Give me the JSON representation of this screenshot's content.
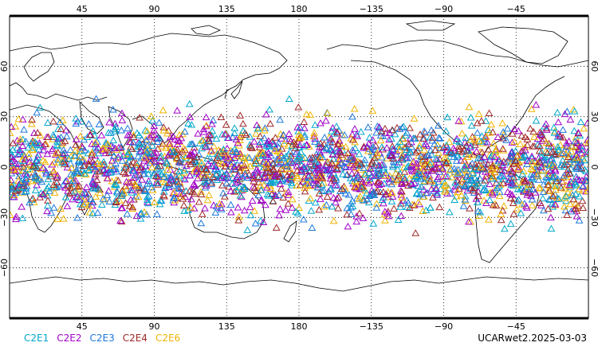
{
  "map": {
    "projection": "cylindrical-equidistant",
    "lon_range": [
      0,
      360
    ],
    "lat_range": [
      -90,
      90
    ],
    "grid": "dotted",
    "lon_ticks": [
      {
        "lon": 45,
        "label": "45"
      },
      {
        "lon": 90,
        "label": "90"
      },
      {
        "lon": 135,
        "label": "135"
      },
      {
        "lon": 180,
        "label": "180"
      },
      {
        "lon": 225,
        "label": "−135"
      },
      {
        "lon": 270,
        "label": "−90"
      },
      {
        "lon": 315,
        "label": "−45"
      }
    ],
    "lat_ticks": [
      {
        "lat": 60,
        "label": "60"
      },
      {
        "lat": 30,
        "label": "30"
      },
      {
        "lat": 0,
        "label": "0"
      },
      {
        "lat": -30,
        "label": "−30"
      },
      {
        "lat": -60,
        "label": "−60"
      }
    ],
    "marker": "triangle-outline",
    "observation_band_lat": [
      -42,
      42
    ]
  },
  "legend": [
    {
      "label": "C2E1",
      "color": "#00a8cc"
    },
    {
      "label": "C2E2",
      "color": "#a000c8"
    },
    {
      "label": "C2E3",
      "color": "#1e78dc"
    },
    {
      "label": "C2E4",
      "color": "#a02828"
    },
    {
      "label": "C2E6",
      "color": "#f0b400"
    }
  ],
  "footer": {
    "label": "UCARwet2.2025-03-03"
  }
}
